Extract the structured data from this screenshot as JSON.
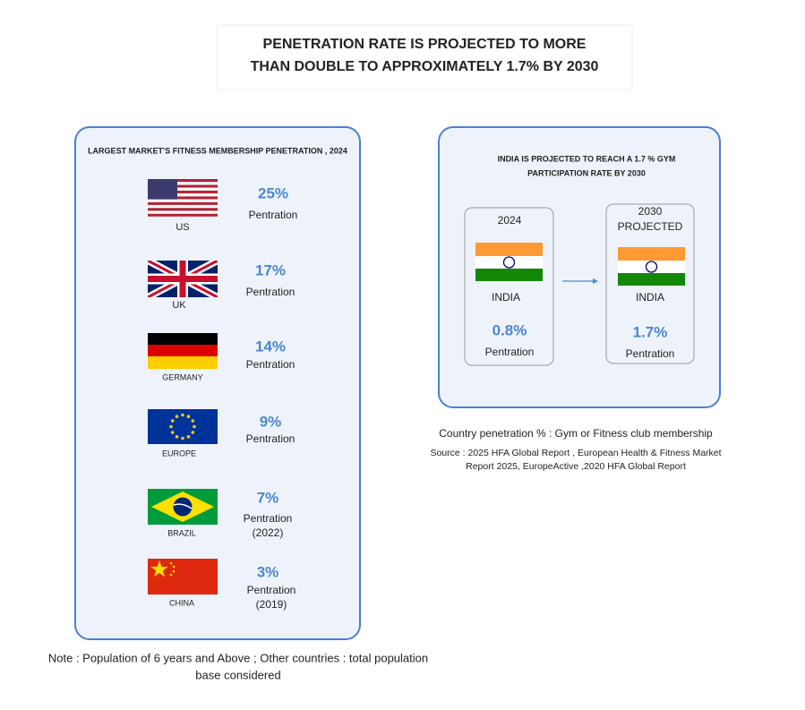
{
  "header": {
    "title_lines": [
      "PENETRATION RATE IS PROJECTED TO MORE",
      "THAN DOUBLE TO APPROXIMATELY 1.7% BY 2030"
    ]
  },
  "left_panel": {
    "title": "LARGEST MARKET'S FITNESS MEMBERSHIP PENETRATION , 2024",
    "markets": [
      {
        "country": "US",
        "value": "25%",
        "label": "Pentration"
      },
      {
        "country": "UK",
        "value": "17%",
        "label": "Pentration"
      },
      {
        "country": "GERMANY",
        "value": "14%",
        "label": "Pentration"
      },
      {
        "country": "EUROPE",
        "value": "9%",
        "label": "Pentration"
      },
      {
        "country": "BRAZIL",
        "value": "7%",
        "label": "Pentration",
        "year": "(2022)"
      },
      {
        "country": "CHINA",
        "value": "3%",
        "label": "Pentration",
        "year": "(2019)"
      }
    ]
  },
  "right_panel": {
    "title_lines": [
      "INDIA IS PROJECTED TO REACH A 1.7 % GYM",
      "PARTICIPATION RATE BY 2030"
    ],
    "cards": [
      {
        "year_lines": [
          "2024"
        ],
        "country": "INDIA",
        "value": "0.8%",
        "label": "Pentration"
      },
      {
        "year_lines": [
          "2030",
          "PROJECTED"
        ],
        "country": "INDIA",
        "value": "1.7%",
        "label": "Pentration"
      }
    ]
  },
  "definition": "Country penetration % : Gym or Fitness club membership",
  "source_lines": [
    "Source : 2025 HFA Global Report , European Health & Fitness Market",
    "Report 2025, EuropeActive ,2020 HFA Global Report"
  ],
  "note_lines": [
    "Note : Population of 6 years and Above ; Other countries : total population",
    "base considered"
  ]
}
